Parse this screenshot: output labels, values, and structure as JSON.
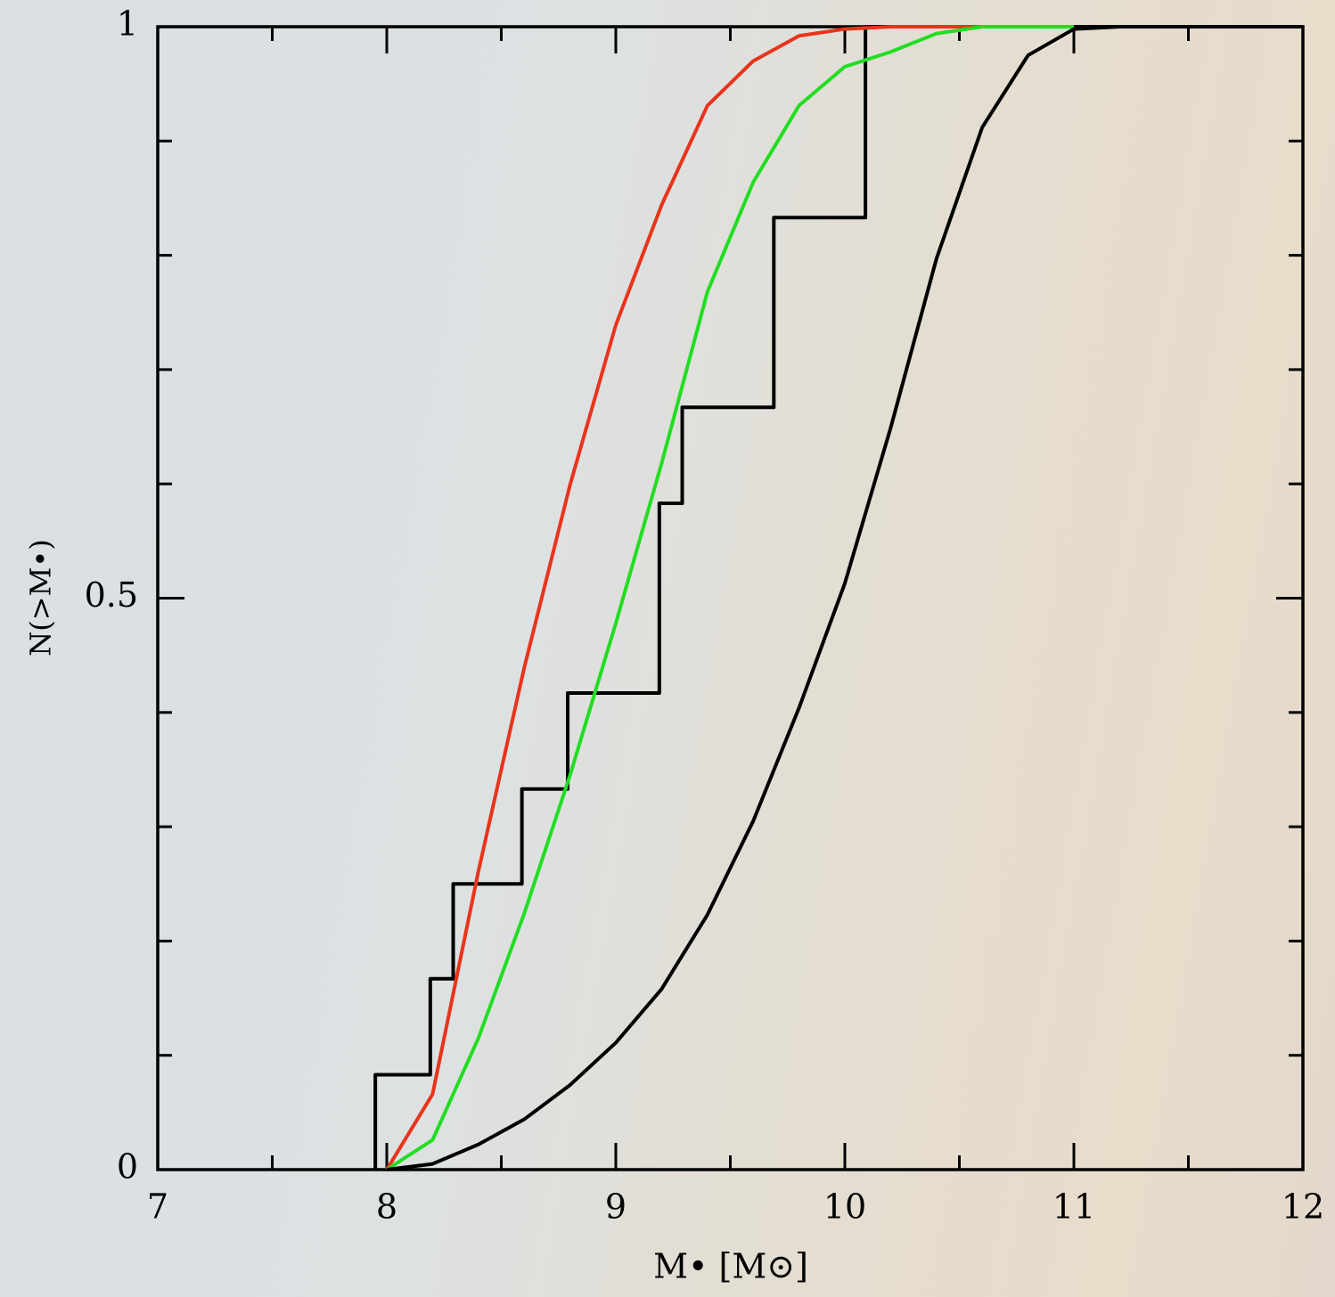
{
  "chart_data": {
    "type": "line",
    "x_label": "M• [M⊙]",
    "y_label": "N(>M•)",
    "xlim": [
      7,
      12
    ],
    "ylim": [
      0,
      1
    ],
    "xticks": [
      7,
      8,
      9,
      10,
      11,
      12
    ],
    "yticks": [
      0,
      0.5,
      1
    ],
    "xminorticks": [
      7.5,
      8.5,
      9.5,
      10.5,
      11.5
    ],
    "yminorticks": [
      0.1,
      0.2,
      0.3,
      0.4,
      0.6,
      0.7,
      0.8,
      0.9
    ],
    "series": [
      {
        "style": "step",
        "color": "#000000",
        "x": [
          7.95,
          8.19,
          8.29,
          8.59,
          8.79,
          9.19,
          9.29,
          9.69,
          10.09
        ],
        "values": [
          0.083,
          0.167,
          0.25,
          0.333,
          0.417,
          0.583,
          0.667,
          0.833,
          1
        ]
      },
      {
        "style": "line",
        "color": "#e8341c",
        "x": [
          8,
          8.2,
          8.4,
          8.6,
          8.8,
          9.0,
          9.2,
          9.4,
          9.6,
          9.8,
          10.0,
          10.2,
          10.6,
          11
        ],
        "values": [
          0,
          0.066,
          0.261,
          0.439,
          0.599,
          0.739,
          0.844,
          0.931,
          0.97,
          0.992,
          0.998,
          1,
          1,
          1
        ]
      },
      {
        "style": "line",
        "color": "#22dd22",
        "x": [
          8,
          8.2,
          8.4,
          8.6,
          8.8,
          9.0,
          9.2,
          9.4,
          9.6,
          9.8,
          10.0,
          10.2,
          10.4,
          10.6,
          11
        ],
        "values": [
          0,
          0.026,
          0.115,
          0.224,
          0.345,
          0.478,
          0.618,
          0.768,
          0.864,
          0.931,
          0.965,
          0.978,
          0.994,
          1,
          1
        ]
      },
      {
        "style": "line",
        "color": "#000000",
        "x": [
          8,
          8.2,
          8.4,
          8.6,
          8.8,
          9.0,
          9.2,
          9.4,
          9.6,
          9.8,
          10.0,
          10.2,
          10.4,
          10.6,
          10.8,
          11.0,
          11.2,
          11.4
        ],
        "values": [
          0,
          0.005,
          0.022,
          0.044,
          0.074,
          0.111,
          0.158,
          0.223,
          0.305,
          0.404,
          0.513,
          0.649,
          0.797,
          0.912,
          0.975,
          0.998,
          1,
          1
        ]
      }
    ]
  }
}
